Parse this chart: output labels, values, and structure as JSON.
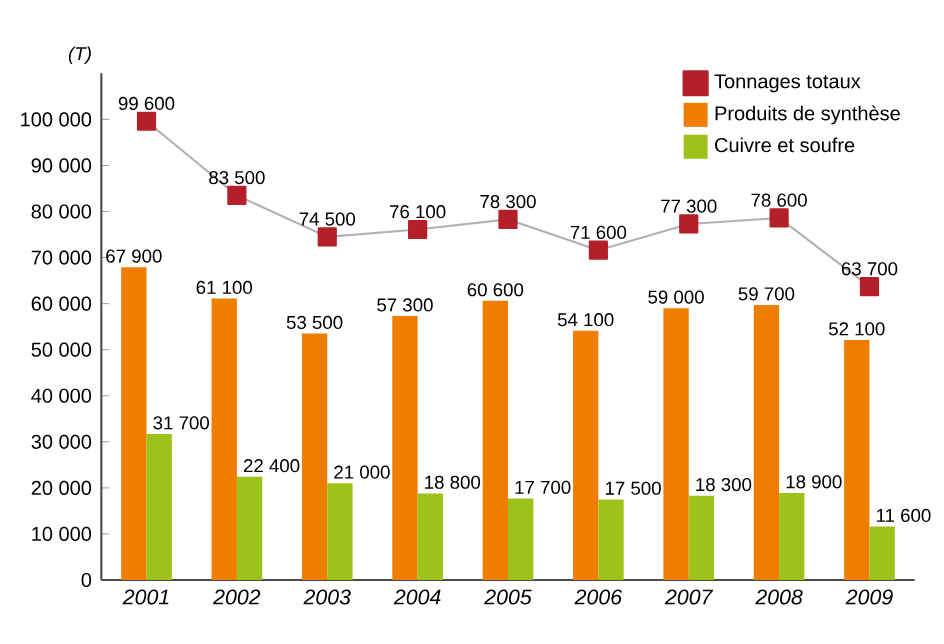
{
  "chart_data": {
    "type": "bar",
    "ylabel": "(T)",
    "categories": [
      "2001",
      "2002",
      "2003",
      "2004",
      "2005",
      "2006",
      "2007",
      "2008",
      "2009"
    ],
    "series": [
      {
        "name": "Tonnages totaux",
        "type": "line",
        "color": "#b3202a",
        "marker": "square",
        "values": [
          99600,
          83500,
          74500,
          76100,
          78300,
          71600,
          77300,
          78600,
          63700
        ],
        "value_labels": [
          "99 600",
          "83 500",
          "74 500",
          "76 100",
          "78 300",
          "71 600",
          "77 300",
          "78 600",
          "63 700"
        ]
      },
      {
        "name": "Produits de synthèse",
        "color": "#ef7d00",
        "values": [
          67900,
          61100,
          53500,
          57300,
          60600,
          54100,
          59000,
          59700,
          52100
        ],
        "value_labels": [
          "67 900",
          "61 100",
          "53 500",
          "57 300",
          "60 600",
          "54 100",
          "59 000",
          "59 700",
          "52 100"
        ]
      },
      {
        "name": "Cuivre et soufre",
        "color": "#9dc31a",
        "values": [
          31700,
          22400,
          21000,
          18800,
          17700,
          17500,
          18300,
          18900,
          11600
        ],
        "value_labels": [
          "31 700",
          "22 400",
          "21 000",
          "18 800",
          "17 700",
          "17 500",
          "18 300",
          "18 900",
          "11 600"
        ]
      }
    ],
    "ylim": [
      0,
      110000
    ],
    "yticks": [
      0,
      {
        "value": 10000,
        "label": "10 000"
      },
      {
        "value": 20000,
        "label": "20 000"
      },
      {
        "value": 30000,
        "label": "30 000"
      },
      {
        "value": 40000,
        "label": "40 000"
      },
      {
        "value": 50000,
        "label": "50 000"
      },
      {
        "value": 60000,
        "label": "60 000"
      },
      {
        "value": 70000,
        "label": "70 000"
      },
      {
        "value": 80000,
        "label": "80 000"
      },
      {
        "value": 90000,
        "label": "90 000"
      },
      {
        "value": 100000,
        "label": "100 000"
      }
    ],
    "legend": "top right"
  }
}
